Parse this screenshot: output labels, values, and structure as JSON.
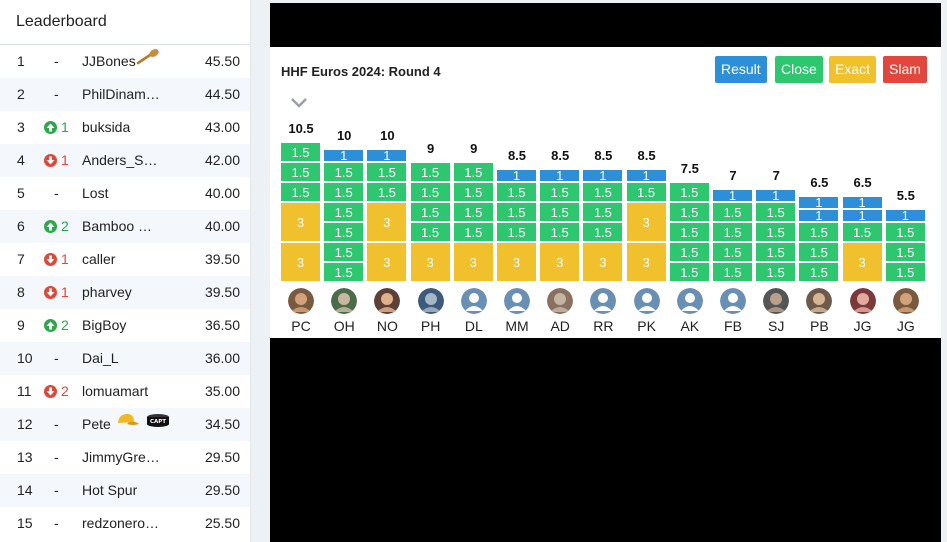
{
  "leaderboard": {
    "title": "Leaderboard",
    "rows": [
      {
        "rank": "1",
        "dir": "none",
        "move": "-",
        "name": "JJBones",
        "badge": "spoon",
        "points": "45.50"
      },
      {
        "rank": "2",
        "dir": "none",
        "move": "-",
        "name": "PhilDinam…",
        "badge": "",
        "points": "44.50"
      },
      {
        "rank": "3",
        "dir": "up",
        "move": "1",
        "name": "buksida",
        "badge": "",
        "points": "43.00"
      },
      {
        "rank": "4",
        "dir": "down",
        "move": "1",
        "name": "Anders_S…",
        "badge": "",
        "points": "42.00"
      },
      {
        "rank": "5",
        "dir": "none",
        "move": "-",
        "name": "Lost",
        "badge": "",
        "points": "40.00"
      },
      {
        "rank": "6",
        "dir": "up",
        "move": "2",
        "name": "Bamboo G…",
        "badge": "",
        "points": "40.00"
      },
      {
        "rank": "7",
        "dir": "down",
        "move": "1",
        "name": "caller",
        "badge": "",
        "points": "39.50"
      },
      {
        "rank": "8",
        "dir": "down",
        "move": "1",
        "name": "pharvey",
        "badge": "",
        "points": "39.50"
      },
      {
        "rank": "9",
        "dir": "up",
        "move": "2",
        "name": "BigBoy",
        "badge": "",
        "points": "36.50"
      },
      {
        "rank": "10",
        "dir": "none",
        "move": "-",
        "name": "Dai_L",
        "badge": "",
        "points": "36.00"
      },
      {
        "rank": "11",
        "dir": "down",
        "move": "2",
        "name": "lomuamart",
        "badge": "",
        "points": "35.00"
      },
      {
        "rank": "12",
        "dir": "none",
        "move": "-",
        "name": "Pete",
        "badge": "cap-capt",
        "points": "34.50"
      },
      {
        "rank": "13",
        "dir": "none",
        "move": "-",
        "name": "JimmyGrea…",
        "badge": "",
        "points": "29.50"
      },
      {
        "rank": "14",
        "dir": "none",
        "move": "-",
        "name": "Hot Spur",
        "badge": "",
        "points": "29.50"
      },
      {
        "rank": "15",
        "dir": "none",
        "move": "-",
        "name": "redzonero…",
        "badge": "",
        "points": "25.50"
      }
    ]
  },
  "round": {
    "title": "HHF Euros 2024: Round 4",
    "buttons": {
      "result": "Result",
      "close": "Close",
      "exact": "Exact",
      "slam": "Slam"
    },
    "legend_colors": {
      "result": "#2d8fd8",
      "close": "#2ec66e",
      "exact": "#f0c12d",
      "slam": "#e2473e"
    },
    "players": [
      {
        "initials": "PC",
        "total": "10.5",
        "avatar": "photo",
        "blocks": [
          {
            "t": "green",
            "v": "1.5"
          },
          {
            "t": "green",
            "v": "1.5"
          },
          {
            "t": "green",
            "v": "1.5"
          },
          {
            "t": "yellow",
            "v": "3"
          },
          {
            "t": "yellow",
            "v": "3"
          }
        ]
      },
      {
        "initials": "OH",
        "total": "10",
        "avatar": "photo",
        "blocks": [
          {
            "t": "blue",
            "v": "1"
          },
          {
            "t": "green",
            "v": "1.5"
          },
          {
            "t": "green",
            "v": "1.5"
          },
          {
            "t": "green",
            "v": "1.5"
          },
          {
            "t": "green",
            "v": "1.5"
          },
          {
            "t": "green",
            "v": "1.5"
          },
          {
            "t": "green",
            "v": "1.5"
          }
        ]
      },
      {
        "initials": "NO",
        "total": "10",
        "avatar": "photo",
        "blocks": [
          {
            "t": "blue",
            "v": "1"
          },
          {
            "t": "green",
            "v": "1.5"
          },
          {
            "t": "green",
            "v": "1.5"
          },
          {
            "t": "yellow",
            "v": "3"
          },
          {
            "t": "yellow",
            "v": "3"
          }
        ]
      },
      {
        "initials": "PH",
        "total": "9",
        "avatar": "photo",
        "blocks": [
          {
            "t": "green",
            "v": "1.5"
          },
          {
            "t": "green",
            "v": "1.5"
          },
          {
            "t": "green",
            "v": "1.5"
          },
          {
            "t": "green",
            "v": "1.5"
          },
          {
            "t": "yellow",
            "v": "3"
          }
        ]
      },
      {
        "initials": "DL",
        "total": "9",
        "avatar": "generic",
        "blocks": [
          {
            "t": "green",
            "v": "1.5"
          },
          {
            "t": "green",
            "v": "1.5"
          },
          {
            "t": "green",
            "v": "1.5"
          },
          {
            "t": "green",
            "v": "1.5"
          },
          {
            "t": "yellow",
            "v": "3"
          }
        ]
      },
      {
        "initials": "MM",
        "total": "8.5",
        "avatar": "generic",
        "blocks": [
          {
            "t": "blue",
            "v": "1"
          },
          {
            "t": "green",
            "v": "1.5"
          },
          {
            "t": "green",
            "v": "1.5"
          },
          {
            "t": "green",
            "v": "1.5"
          },
          {
            "t": "yellow",
            "v": "3"
          }
        ]
      },
      {
        "initials": "AD",
        "total": "8.5",
        "avatar": "photo",
        "blocks": [
          {
            "t": "blue",
            "v": "1"
          },
          {
            "t": "green",
            "v": "1.5"
          },
          {
            "t": "green",
            "v": "1.5"
          },
          {
            "t": "green",
            "v": "1.5"
          },
          {
            "t": "yellow",
            "v": "3"
          }
        ]
      },
      {
        "initials": "RR",
        "total": "8.5",
        "avatar": "generic",
        "blocks": [
          {
            "t": "blue",
            "v": "1"
          },
          {
            "t": "green",
            "v": "1.5"
          },
          {
            "t": "green",
            "v": "1.5"
          },
          {
            "t": "green",
            "v": "1.5"
          },
          {
            "t": "yellow",
            "v": "3"
          }
        ]
      },
      {
        "initials": "PK",
        "total": "8.5",
        "avatar": "generic",
        "blocks": [
          {
            "t": "blue",
            "v": "1"
          },
          {
            "t": "green",
            "v": "1.5"
          },
          {
            "t": "yellow",
            "v": "3"
          },
          {
            "t": "yellow",
            "v": "3"
          }
        ]
      },
      {
        "initials": "AK",
        "total": "7.5",
        "avatar": "generic",
        "blocks": [
          {
            "t": "green",
            "v": "1.5"
          },
          {
            "t": "green",
            "v": "1.5"
          },
          {
            "t": "green",
            "v": "1.5"
          },
          {
            "t": "green",
            "v": "1.5"
          },
          {
            "t": "green",
            "v": "1.5"
          }
        ]
      },
      {
        "initials": "FB",
        "total": "7",
        "avatar": "generic",
        "blocks": [
          {
            "t": "blue",
            "v": "1"
          },
          {
            "t": "green",
            "v": "1.5"
          },
          {
            "t": "green",
            "v": "1.5"
          },
          {
            "t": "green",
            "v": "1.5"
          },
          {
            "t": "green",
            "v": "1.5"
          }
        ]
      },
      {
        "initials": "SJ",
        "total": "7",
        "avatar": "photo",
        "blocks": [
          {
            "t": "blue",
            "v": "1"
          },
          {
            "t": "green",
            "v": "1.5"
          },
          {
            "t": "green",
            "v": "1.5"
          },
          {
            "t": "green",
            "v": "1.5"
          },
          {
            "t": "green",
            "v": "1.5"
          }
        ]
      },
      {
        "initials": "PB",
        "total": "6.5",
        "avatar": "photo",
        "blocks": [
          {
            "t": "blue",
            "v": "1"
          },
          {
            "t": "blue",
            "v": "1"
          },
          {
            "t": "green",
            "v": "1.5"
          },
          {
            "t": "green",
            "v": "1.5"
          },
          {
            "t": "green",
            "v": "1.5"
          }
        ]
      },
      {
        "initials": "JG",
        "total": "6.5",
        "avatar": "photo",
        "blocks": [
          {
            "t": "blue",
            "v": "1"
          },
          {
            "t": "blue",
            "v": "1"
          },
          {
            "t": "green",
            "v": "1.5"
          },
          {
            "t": "yellow",
            "v": "3"
          }
        ]
      },
      {
        "initials": "JG",
        "total": "5.5",
        "avatar": "photo",
        "blocks": [
          {
            "t": "blue",
            "v": "1"
          },
          {
            "t": "green",
            "v": "1.5"
          },
          {
            "t": "green",
            "v": "1.5"
          },
          {
            "t": "green",
            "v": "1.5"
          }
        ]
      }
    ]
  }
}
